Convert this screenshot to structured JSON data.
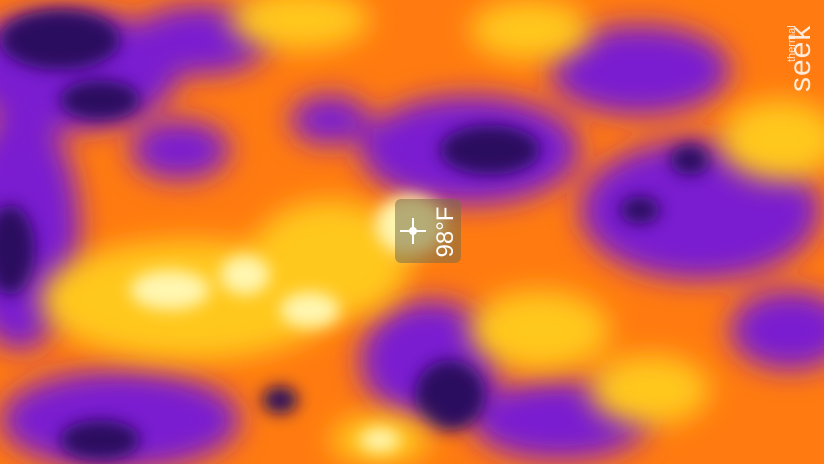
{
  "readout": {
    "temperature": "98°F"
  },
  "logo": {
    "brand": "seek",
    "subtitle": "thermal"
  },
  "palette": {
    "cold": "#2a0a5e",
    "cool": "#7a1fd0",
    "warm": "#ff6a00",
    "hot": "#ffd21a",
    "hottest": "#fffbd0"
  }
}
